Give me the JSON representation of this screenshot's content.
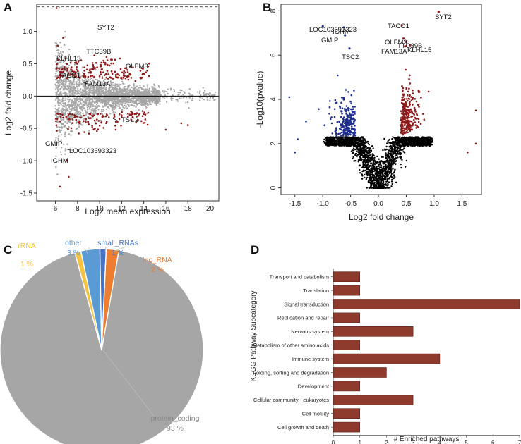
{
  "colors": {
    "up": "#8b1a1a",
    "down": "#1f2f8f",
    "ns_ma": "#a6a6a6",
    "ns_volcano": "#000000",
    "bar": "#8e3a2c",
    "pie_protein": "#a6a6a6",
    "pie_rRNA": "#f5c242",
    "pie_other": "#5b9bd5",
    "pie_small": "#4472c4",
    "pie_lnc": "#ed7d31"
  },
  "chart_data": [
    {
      "panel": "A",
      "type": "scatter",
      "title": "",
      "xlabel": "Log2 mean expression",
      "ylabel": "Log2 fold change",
      "xlim": [
        4.3,
        20.8
      ],
      "ylim": [
        -1.62,
        1.42
      ],
      "xticks": [
        6,
        8,
        10,
        12,
        14,
        16,
        18,
        20
      ],
      "yticks": [
        -1.5,
        -1.0,
        -0.5,
        0.0,
        0.5,
        1.0
      ],
      "ytick_labels": [
        "-1.5",
        "-1.0",
        "-0.5",
        "0.0",
        "0.5",
        "1.0"
      ],
      "reference_lines": [
        0.0,
        1.38
      ],
      "labels": [
        {
          "gene": "SYT2",
          "x": 10.7,
          "y": 1.08
        },
        {
          "gene": "TTC39B",
          "x": 10.6,
          "y": 0.6
        },
        {
          "gene": "KLHL15",
          "x": 9.2,
          "y": 0.49
        },
        {
          "gene": "OLFM3",
          "x": 12.2,
          "y": 0.42
        },
        {
          "gene": "TACO1",
          "x": 8.6,
          "y": 0.27
        },
        {
          "gene": "FAM13A",
          "x": 10.8,
          "y": 0.17
        },
        {
          "gene": "TSC2",
          "x": 12.5,
          "y": -0.37
        },
        {
          "gene": "GMIP",
          "x": 6.6,
          "y": -0.76
        },
        {
          "gene": "LOC103693323",
          "x": 8.1,
          "y": -0.9
        },
        {
          "gene": "IGHM",
          "x": 7.0,
          "y": -1.1
        }
      ]
    },
    {
      "panel": "B",
      "type": "scatter",
      "title": "",
      "xlabel": "Log2 fold change",
      "ylabel": "-Log10(pvalue)",
      "xlim": [
        -1.75,
        1.85
      ],
      "ylim": [
        -0.3,
        8.3
      ],
      "xticks": [
        -1.5,
        -1.0,
        -0.5,
        0.0,
        0.5,
        1.0,
        1.5
      ],
      "xtick_labels": [
        "-1.5",
        "-1.0",
        "-0.5",
        "0.0",
        "0.5",
        "1.0",
        "1.5"
      ],
      "yticks": [
        0,
        2,
        4,
        6,
        8
      ],
      "labels": [
        {
          "gene": "SYT2",
          "x": 1.08,
          "y": 7.95
        },
        {
          "gene": "TACO1",
          "x": 0.42,
          "y": 7.35
        },
        {
          "gene": "LOC103693323",
          "x": -1.0,
          "y": 7.3
        },
        {
          "gene": "IGHM",
          "x": -0.62,
          "y": 7.25
        },
        {
          "gene": "GMIP",
          "x": -0.6,
          "y": 6.9
        },
        {
          "gene": "OLFM3",
          "x": 0.45,
          "y": 6.75
        },
        {
          "gene": "TTC39B",
          "x": 0.5,
          "y": 6.6
        },
        {
          "gene": "FAM13A",
          "x": 0.48,
          "y": 6.4
        },
        {
          "gene": "KLHL15",
          "x": 0.57,
          "y": 6.45
        },
        {
          "gene": "TSC2",
          "x": -0.52,
          "y": 6.3
        }
      ]
    },
    {
      "panel": "C",
      "type": "pie",
      "title": "",
      "slices": [
        {
          "name": "protein_coding",
          "value": 93,
          "label": "93 %"
        },
        {
          "name": "rRNA",
          "value": 1,
          "label": "1 %"
        },
        {
          "name": "other",
          "value": 3,
          "label": "3 %"
        },
        {
          "name": "small_RNAs",
          "value": 1,
          "label": "1 %"
        },
        {
          "name": "lnc_RNA",
          "value": 2,
          "label": "2 %"
        }
      ]
    },
    {
      "panel": "D",
      "type": "bar",
      "orientation": "horizontal",
      "title": "",
      "xlabel": "# Enriched pathways",
      "ylabel": "KEGG Pathway Subcategory",
      "xlim": [
        0,
        7
      ],
      "xticks": [
        0,
        1,
        2,
        3,
        4,
        5,
        6,
        7
      ],
      "categories": [
        "Transport and catabolism",
        "Translation",
        "Signal transduction",
        "Replication and repair",
        "Nervous system",
        "Metabolism of other amino acids",
        "Immune system",
        "Folding, sorting and degradation",
        "Development",
        "Cellular community - eukaryotes",
        "Cell motility",
        "Cell growth and death"
      ],
      "values": [
        1,
        1,
        7,
        1,
        3,
        1,
        4,
        2,
        1,
        3,
        1,
        1
      ]
    }
  ]
}
